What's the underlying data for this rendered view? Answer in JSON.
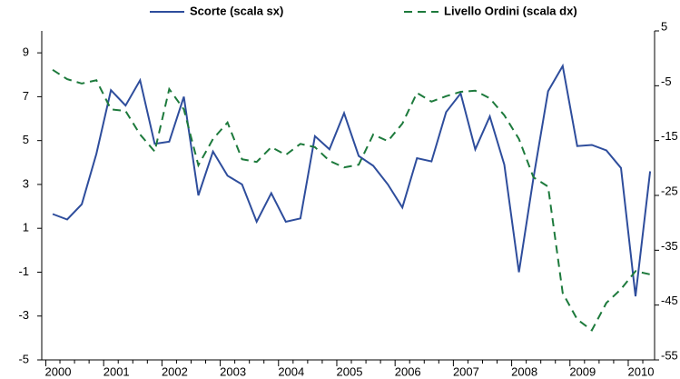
{
  "chart_data": {
    "type": "line",
    "categories": [
      "2000",
      null,
      null,
      null,
      "2001",
      null,
      null,
      null,
      "2002",
      null,
      null,
      null,
      "2003",
      null,
      null,
      null,
      "2004",
      null,
      null,
      null,
      "2005",
      null,
      null,
      null,
      "2006",
      null,
      null,
      null,
      "2007",
      null,
      null,
      null,
      "2008",
      null,
      null,
      null,
      "2009",
      null,
      null,
      null,
      "2010",
      null
    ],
    "series": [
      {
        "name": "Scorte (scala sx)",
        "color": "#2e4d9c",
        "dash": false,
        "values": [
          1.65,
          1.4,
          2.1,
          4.4,
          7.3,
          6.6,
          7.75,
          4.85,
          4.95,
          7.0,
          2.5,
          4.5,
          3.4,
          3.0,
          1.3,
          2.6,
          1.3,
          1.45,
          5.2,
          4.6,
          6.25,
          4.3,
          3.85,
          3.0,
          1.95,
          4.2,
          4.05,
          6.3,
          7.15,
          4.6,
          6.1,
          3.9,
          -1.0,
          3.3,
          7.25,
          8.4,
          4.75,
          4.8,
          4.55,
          3.75,
          -2.1,
          3.6
        ]
      },
      {
        "name": "Livello Ordini (scala dx)",
        "color": "#1d7a3c",
        "dash": true,
        "axis": "y2",
        "values": [
          -2.1,
          -3.8,
          -4.6,
          -4.0,
          -9.3,
          -9.6,
          -13.9,
          -17.0,
          -5.6,
          -9.3,
          -19.5,
          -14.7,
          -11.7,
          -18.4,
          -18.9,
          -16.2,
          -17.6,
          -15.6,
          -16.2,
          -18.7,
          -19.9,
          -19.4,
          -13.9,
          -15.1,
          -11.9,
          -6.3,
          -7.9,
          -6.9,
          -6.1,
          -5.9,
          -7.3,
          -10.4,
          -14.7,
          -21.7,
          -23.4,
          -42.8,
          -47.6,
          -49.6,
          -44.6,
          -42.1,
          -38.8,
          -39.4
        ]
      }
    ],
    "ylim": [
      -5,
      10
    ],
    "yticks": [
      -5,
      -3,
      -1,
      1,
      3,
      5,
      7,
      9
    ],
    "y2lim": [
      -55,
      5
    ],
    "y2ticks": [
      -55,
      -45,
      -35,
      -25,
      -15,
      -5,
      5
    ],
    "grid": false,
    "legend": "top"
  }
}
